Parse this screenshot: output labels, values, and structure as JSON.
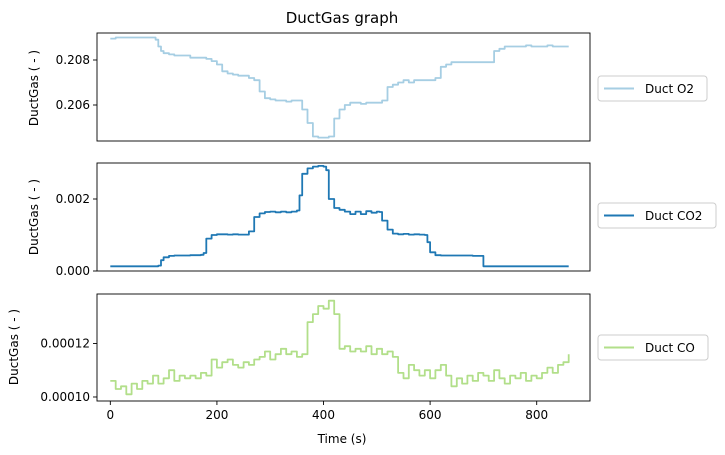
{
  "chart_data": {
    "type": "line",
    "title": "DuctGas graph",
    "xlabel": "Time (s)",
    "xlim": [
      -25,
      900
    ],
    "xticks": [
      0,
      200,
      400,
      600,
      800
    ],
    "xtick_labels": [
      "0",
      "200",
      "400",
      "600",
      "800"
    ],
    "legend_placement": "right, outside each panel",
    "panels": [
      {
        "ylabel": "DuctGas ( - )",
        "ylim": [
          0.2044,
          0.2092
        ],
        "yticks": [
          0.206,
          0.208
        ],
        "ytick_labels": [
          "0.206",
          "0.208"
        ],
        "show_xticks": false,
        "series": [
          {
            "name": "Duct O2",
            "color": "#a6cee3",
            "x": [
              0,
              10,
              20,
              30,
              40,
              50,
              60,
              70,
              80,
              85,
              90,
              95,
              100,
              110,
              120,
              130,
              140,
              150,
              160,
              170,
              180,
              190,
              200,
              210,
              220,
              230,
              240,
              250,
              260,
              270,
              280,
              290,
              300,
              310,
              320,
              330,
              340,
              350,
              360,
              370,
              380,
              390,
              400,
              410,
              420,
              430,
              440,
              450,
              460,
              470,
              480,
              490,
              500,
              510,
              520,
              530,
              540,
              550,
              560,
              570,
              580,
              590,
              600,
              610,
              620,
              630,
              640,
              650,
              660,
              670,
              680,
              690,
              700,
              710,
              720,
              730,
              740,
              750,
              760,
              770,
              780,
              790,
              800,
              810,
              820,
              830,
              840,
              850,
              860
            ],
            "y": [
              0.20895,
              0.209,
              0.209,
              0.209,
              0.209,
              0.209,
              0.209,
              0.209,
              0.209,
              0.2089,
              0.2086,
              0.2084,
              0.2083,
              0.20825,
              0.2082,
              0.2082,
              0.2082,
              0.2081,
              0.2081,
              0.2081,
              0.20805,
              0.20795,
              0.2078,
              0.2075,
              0.2074,
              0.20735,
              0.2073,
              0.2073,
              0.2072,
              0.2071,
              0.2066,
              0.2063,
              0.20625,
              0.2062,
              0.2062,
              0.20615,
              0.2062,
              0.2062,
              0.2058,
              0.2052,
              0.2046,
              0.20455,
              0.20455,
              0.2046,
              0.2054,
              0.2058,
              0.206,
              0.2061,
              0.2061,
              0.20605,
              0.2061,
              0.2061,
              0.2061,
              0.2062,
              0.2068,
              0.2069,
              0.207,
              0.2071,
              0.207,
              0.2071,
              0.2071,
              0.2071,
              0.2071,
              0.2072,
              0.2077,
              0.2078,
              0.2079,
              0.2079,
              0.2079,
              0.2079,
              0.2079,
              0.2079,
              0.2079,
              0.2079,
              0.2084,
              0.2085,
              0.2086,
              0.2086,
              0.2086,
              0.2086,
              0.20865,
              0.2086,
              0.2086,
              0.2086,
              0.20865,
              0.2086,
              0.2086,
              0.2086,
              0.2086
            ]
          }
        ]
      },
      {
        "ylabel": "DuctGas ( - )",
        "ylim": [
          0,
          0.003
        ],
        "yticks": [
          0.0,
          0.002
        ],
        "ytick_labels": [
          "0.000",
          "0.002"
        ],
        "show_xticks": false,
        "series": [
          {
            "name": "Duct CO2",
            "color": "#1f78b4",
            "x": [
              0,
              20,
              40,
              60,
              80,
              90,
              95,
              100,
              110,
              120,
              130,
              140,
              150,
              160,
              170,
              175,
              180,
              190,
              200,
              210,
              220,
              230,
              240,
              250,
              260,
              270,
              280,
              290,
              300,
              310,
              320,
              330,
              340,
              350,
              355,
              360,
              370,
              380,
              390,
              400,
              405,
              410,
              420,
              430,
              440,
              450,
              460,
              470,
              480,
              490,
              500,
              505,
              510,
              520,
              530,
              540,
              550,
              560,
              570,
              580,
              590,
              595,
              600,
              610,
              620,
              640,
              660,
              680,
              690,
              700,
              720,
              760,
              800,
              860
            ],
            "y": [
              0.00013,
              0.00013,
              0.00013,
              0.00013,
              0.00013,
              0.00015,
              0.0003,
              0.00038,
              0.00042,
              0.00043,
              0.00043,
              0.00043,
              0.00044,
              0.00044,
              0.00045,
              0.0005,
              0.0009,
              0.001,
              0.00102,
              0.00102,
              0.00101,
              0.00102,
              0.00101,
              0.00101,
              0.0011,
              0.0015,
              0.0016,
              0.00164,
              0.00165,
              0.00163,
              0.00165,
              0.00163,
              0.00165,
              0.00168,
              0.0021,
              0.0027,
              0.00285,
              0.0029,
              0.00292,
              0.0029,
              0.0028,
              0.002,
              0.00175,
              0.0017,
              0.00165,
              0.00158,
              0.00165,
              0.00158,
              0.00166,
              0.00162,
              0.00165,
              0.00164,
              0.0014,
              0.00115,
              0.00104,
              0.00102,
              0.00103,
              0.00101,
              0.00102,
              0.00101,
              0.001,
              0.0008,
              0.00052,
              0.00044,
              0.00043,
              0.00043,
              0.00043,
              0.00042,
              0.00042,
              0.00013,
              0.00013,
              0.00013,
              0.00013,
              0.00013
            ]
          }
        ]
      },
      {
        "ylabel": "DuctGas ( - )",
        "ylim": [
          9.85e-05,
          0.0001385
        ],
        "yticks": [
          0.0001,
          0.00012
        ],
        "ytick_labels": [
          "0.00010",
          "0.00012"
        ],
        "show_xticks": true,
        "series": [
          {
            "name": "Duct CO",
            "color": "#b2df8a",
            "x": [
              0,
              10,
              20,
              30,
              40,
              50,
              60,
              70,
              80,
              90,
              100,
              110,
              120,
              130,
              140,
              150,
              160,
              170,
              180,
              190,
              200,
              210,
              220,
              230,
              240,
              250,
              260,
              270,
              280,
              290,
              300,
              310,
              320,
              330,
              340,
              350,
              360,
              370,
              380,
              390,
              400,
              410,
              420,
              430,
              440,
              450,
              460,
              470,
              480,
              490,
              500,
              510,
              520,
              530,
              540,
              550,
              560,
              570,
              580,
              590,
              600,
              610,
              620,
              630,
              640,
              650,
              660,
              670,
              680,
              690,
              700,
              710,
              720,
              730,
              740,
              750,
              760,
              770,
              780,
              790,
              800,
              810,
              820,
              830,
              840,
              850,
              860
            ],
            "y": [
              0.000106,
              0.000103,
              0.000104,
              0.000101,
              0.000105,
              0.000103,
              0.000106,
              0.000105,
              0.000108,
              0.000105,
              0.000107,
              0.00011,
              0.000106,
              0.000108,
              0.000107,
              0.000108,
              0.000107,
              0.000109,
              0.000108,
              0.000114,
              0.000111,
              0.000113,
              0.000114,
              0.000112,
              0.000111,
              0.000113,
              0.000112,
              0.000114,
              0.000115,
              0.000117,
              0.000114,
              0.000116,
              0.000118,
              0.000116,
              0.000117,
              0.000115,
              0.000116,
              0.000128,
              0.000131,
              0.000134,
              0.000133,
              0.000136,
              0.000131,
              0.000118,
              0.000119,
              0.000117,
              0.000118,
              0.000117,
              0.000119,
              0.000116,
              0.000118,
              0.000116,
              0.000117,
              0.000115,
              0.000109,
              0.000107,
              0.000112,
              0.00011,
              0.000108,
              0.00011,
              0.000107,
              0.00011,
              0.000112,
              0.000108,
              0.000104,
              0.000107,
              0.000105,
              0.000108,
              0.000106,
              0.000109,
              0.000108,
              0.000106,
              0.00011,
              0.000107,
              0.000105,
              0.000108,
              0.000107,
              0.000109,
              0.000106,
              0.000108,
              0.000107,
              0.000109,
              0.000111,
              0.000109,
              0.000112,
              0.000113,
              0.000116
            ]
          }
        ]
      }
    ]
  }
}
